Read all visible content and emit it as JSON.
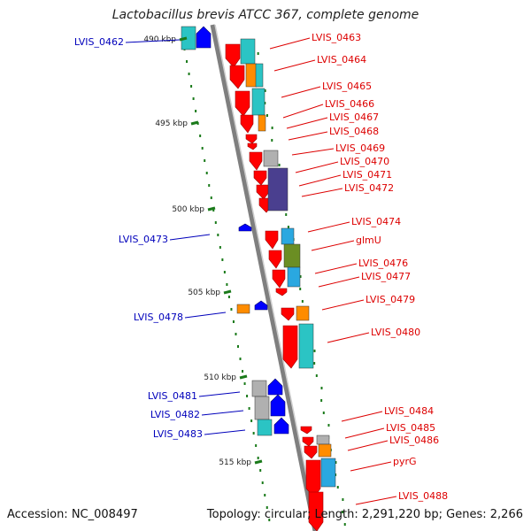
{
  "title": "Lactobacillus brevis ATCC 367, complete genome",
  "footer": {
    "accession": "Accession: NC_008497",
    "topology": "Topology: circular; Length: 2,291,220 bp; Genes: 2,266"
  },
  "colors": {
    "forward_label": "#dd0000",
    "reverse_label": "#0000bb",
    "cds_forward": "#ff0000",
    "cds_reverse": "#0000ff",
    "cog_cyan": "#2bc4c4",
    "cog_orange": "#ff8c00",
    "cog_grey": "#b0b0b0",
    "cog_purple": "#4a3f8f",
    "cog_olive": "#6b8e23",
    "cog_lightblue": "#2aa8e0",
    "gc_skew": "#1a7a1a",
    "backbone": "#7f7f7f"
  },
  "kbp_ticks": [
    "490 kbp",
    "495 kbp",
    "500 kbp",
    "505 kbp",
    "510 kbp",
    "515 kbp"
  ],
  "forward_genes": [
    "LVIS_0463",
    "LVIS_0464",
    "LVIS_0465",
    "LVIS_0466",
    "LVIS_0467",
    "LVIS_0468",
    "LVIS_0469",
    "LVIS_0470",
    "LVIS_0471",
    "LVIS_0472",
    "LVIS_0474",
    "glmU",
    "LVIS_0476",
    "LVIS_0477",
    "LVIS_0479",
    "LVIS_0480",
    "LVIS_0484",
    "LVIS_0485",
    "LVIS_0486",
    "pyrG",
    "LVIS_0488"
  ],
  "reverse_genes": [
    "LVIS_0462",
    "LVIS_0473",
    "LVIS_0478",
    "LVIS_0481",
    "LVIS_0482",
    "LVIS_0483"
  ]
}
